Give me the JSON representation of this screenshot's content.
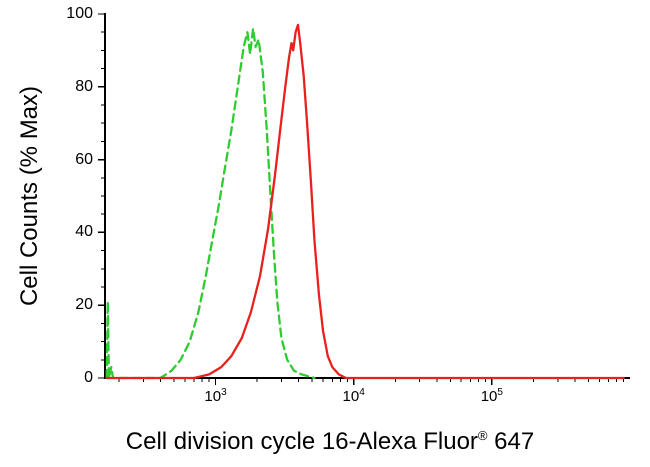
{
  "chart_data": {
    "type": "line",
    "title": "",
    "ylabel": "Cell Counts (% Max)",
    "xlabel_full": "Cell division cycle 16-Alexa Fluor® 647",
    "xlabel_parts": {
      "main": "Cell division cycle 16-Alexa Fluor",
      "registered": "®",
      "suffix": " 647"
    },
    "x_scale": "log10",
    "x_log_range": [
      2.2,
      6.0
    ],
    "x_tick_base": "10",
    "x_major_exponents": [
      3,
      4,
      5
    ],
    "ylim": [
      0,
      100
    ],
    "y_ticks": [
      0,
      20,
      40,
      60,
      80,
      100
    ],
    "y_minor_step": 5,
    "grid": false,
    "legend": "none",
    "series": [
      {
        "name": "green-dashed",
        "color": "#2fcc2f",
        "line_style": "dashed",
        "points": [
          [
            163,
            0
          ],
          [
            166,
            21
          ],
          [
            169,
            0
          ],
          [
            176,
            3
          ],
          [
            181,
            0
          ],
          [
            400,
            0
          ],
          [
            480,
            2
          ],
          [
            560,
            5
          ],
          [
            650,
            10
          ],
          [
            750,
            18
          ],
          [
            850,
            28
          ],
          [
            950,
            38
          ],
          [
            1050,
            47
          ],
          [
            1150,
            56
          ],
          [
            1300,
            68
          ],
          [
            1450,
            80
          ],
          [
            1600,
            91
          ],
          [
            1700,
            95
          ],
          [
            1780,
            89
          ],
          [
            1870,
            96
          ],
          [
            1950,
            91
          ],
          [
            2050,
            93
          ],
          [
            2200,
            84
          ],
          [
            2350,
            68
          ],
          [
            2500,
            50
          ],
          [
            2650,
            34
          ],
          [
            2800,
            21
          ],
          [
            3000,
            11
          ],
          [
            3300,
            5
          ],
          [
            3700,
            2
          ],
          [
            4200,
            1
          ],
          [
            5200,
            0
          ]
        ]
      },
      {
        "name": "red-solid",
        "color": "#e8211c",
        "line_style": "solid",
        "points": [
          [
            163,
            0
          ],
          [
            700,
            0
          ],
          [
            900,
            1
          ],
          [
            1100,
            3
          ],
          [
            1300,
            6
          ],
          [
            1550,
            11
          ],
          [
            1800,
            18
          ],
          [
            2100,
            28
          ],
          [
            2400,
            41
          ],
          [
            2700,
            56
          ],
          [
            3000,
            71
          ],
          [
            3200,
            80
          ],
          [
            3400,
            88
          ],
          [
            3550,
            92
          ],
          [
            3650,
            90
          ],
          [
            3800,
            95
          ],
          [
            3950,
            97
          ],
          [
            4100,
            92
          ],
          [
            4350,
            83
          ],
          [
            4600,
            70
          ],
          [
            4900,
            54
          ],
          [
            5200,
            38
          ],
          [
            5600,
            23
          ],
          [
            6000,
            13
          ],
          [
            6500,
            6
          ],
          [
            7000,
            3
          ],
          [
            7800,
            1
          ],
          [
            8800,
            0
          ],
          [
            900000,
            0
          ]
        ]
      }
    ]
  },
  "colors": {
    "axis": "#000000",
    "background": "#ffffff",
    "green_curve": "#2fcc2f",
    "red_curve": "#e8211c"
  }
}
